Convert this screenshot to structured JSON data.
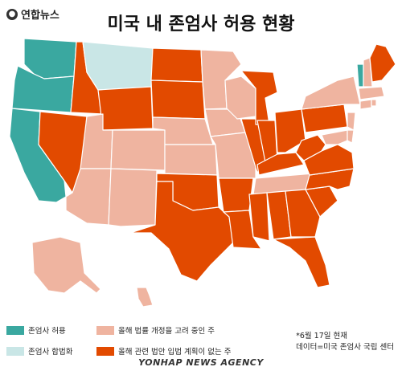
{
  "logo": {
    "text": "연합뉴스",
    "icon": "yonhap-logo-icon"
  },
  "title": "미국 내 존엄사 허용 현황",
  "legend": {
    "legal": {
      "label": "존엄사 허용",
      "color": "#3aa8a0"
    },
    "legalized_by_court": {
      "label": "존엄사 합법화",
      "color": "#c9e6e6"
    },
    "considering": {
      "label": "올해 법률 개정을 고려 중인 주",
      "color": "#efb4a0"
    },
    "no_plan": {
      "label": "올해 관련 법안 입법 계획이 없는 주",
      "color": "#e24a00"
    }
  },
  "note": {
    "date": "*6월 17일 현재",
    "source": "데이터=미국 존엄사 국립 센터"
  },
  "footer": "YONHAP NEWS AGENCY",
  "states": {
    "legal": [
      "WA",
      "OR",
      "CA",
      "VT"
    ],
    "legalized_by_court": [
      "MT"
    ],
    "considering": [
      "AZ",
      "UT",
      "CO",
      "NM",
      "NE",
      "KS",
      "IA",
      "MN",
      "WI",
      "MO",
      "TN",
      "NY",
      "MA",
      "CT",
      "NJ",
      "MD",
      "DE",
      "NH",
      "RI",
      "HI",
      "AK"
    ],
    "no_plan": [
      "NV",
      "ID",
      "WY",
      "ND",
      "SD",
      "OK",
      "TX",
      "AR",
      "LA",
      "MS",
      "AL",
      "GA",
      "FL",
      "SC",
      "NC",
      "VA",
      "WV",
      "KY",
      "OH",
      "IN",
      "IL",
      "MI",
      "PA",
      "ME"
    ]
  }
}
